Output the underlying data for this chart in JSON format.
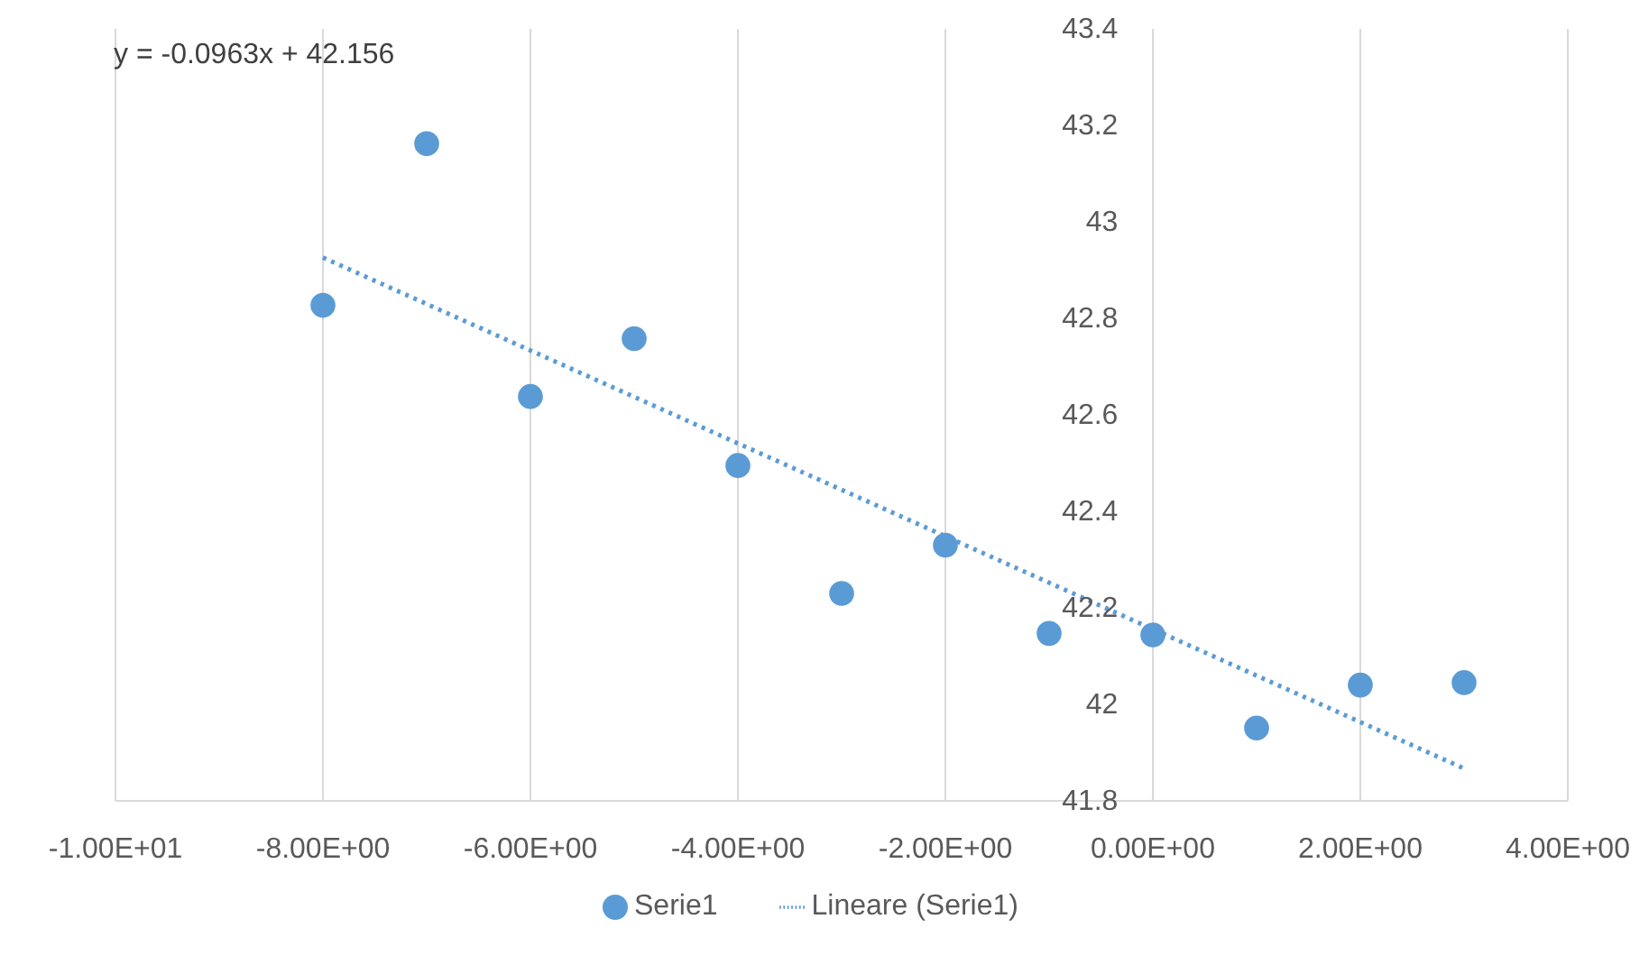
{
  "chart_data": {
    "type": "scatter",
    "x": [
      -8,
      -7,
      -6,
      -5,
      -4,
      -3,
      -2,
      -1,
      0,
      1,
      2,
      3
    ],
    "series": [
      {
        "name": "Serie1",
        "marker": "circle",
        "color": "#5b9bd5",
        "values": [
          42.827,
          43.162,
          42.638,
          42.758,
          42.495,
          42.23,
          42.33,
          42.147,
          42.144,
          41.951,
          42.04,
          42.045
        ]
      },
      {
        "name": "Lineare (Serie1)",
        "type": "line",
        "color": "#5b9bd5",
        "line_style": "dotted",
        "marker": "none",
        "x": [
          -8,
          3
        ],
        "values": [
          42.926,
          41.867
        ]
      }
    ],
    "xlim": [
      -10,
      4
    ],
    "xticks": [
      {
        "value": -10,
        "label": "-1.00E+01"
      },
      {
        "value": -8,
        "label": "-8.00E+00"
      },
      {
        "value": -6,
        "label": "-6.00E+00"
      },
      {
        "value": -4,
        "label": "-4.00E+00"
      },
      {
        "value": -2,
        "label": "-2.00E+00"
      },
      {
        "value": 0,
        "label": "0.00E+00"
      },
      {
        "value": 2,
        "label": "2.00E+00"
      },
      {
        "value": 4,
        "label": "4.00E+00"
      }
    ],
    "ylim": [
      41.8,
      43.4
    ],
    "yticks": [
      41.8,
      42,
      42.2,
      42.4,
      42.6,
      42.8,
      43,
      43.2,
      43.4
    ],
    "grid": "x",
    "legend": "bottom",
    "annotations": [
      "y = -0.0963x + 42.156"
    ]
  }
}
